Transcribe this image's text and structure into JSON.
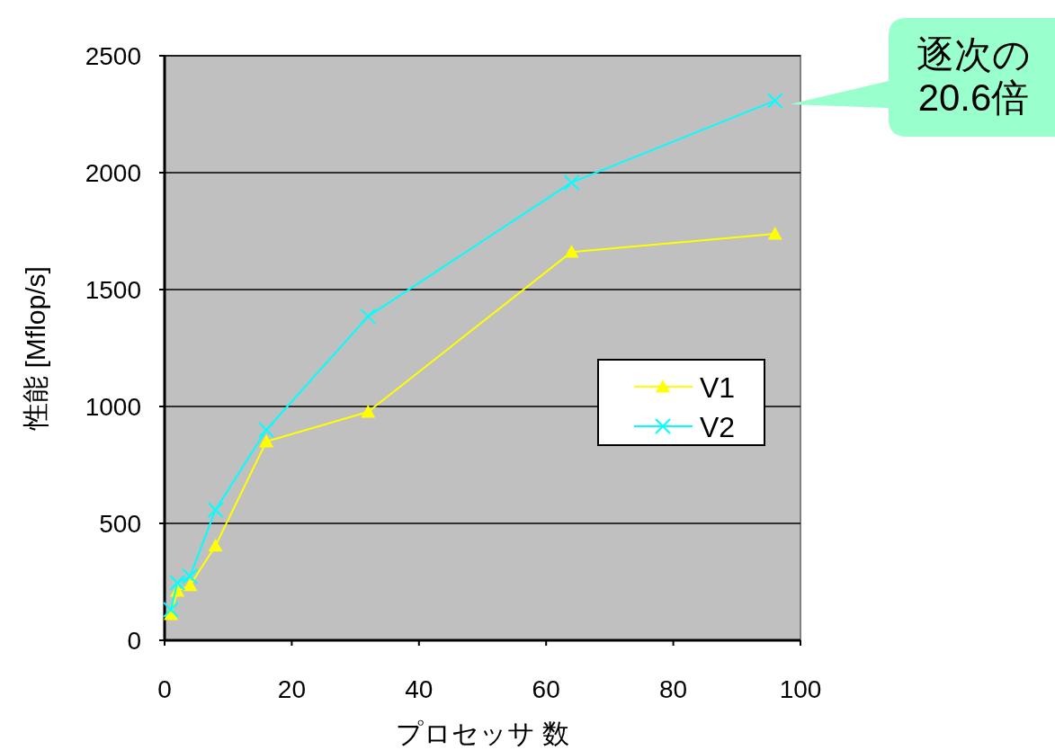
{
  "chart_data": {
    "type": "line",
    "xlabel": "プロセッサ 数",
    "ylabel": "性能 [Mflop/s]",
    "xlim": [
      0,
      100
    ],
    "xticks": [
      0,
      20,
      40,
      60,
      80,
      100
    ],
    "ylim": [
      0,
      2500
    ],
    "yticks": [
      0,
      500,
      1000,
      1500,
      2000,
      2500
    ],
    "grid": "y",
    "legend": "right",
    "series": [
      {
        "name": "V1",
        "color": "#ffff00",
        "marker": "triangle",
        "x": [
          1,
          2,
          4,
          8,
          16,
          32,
          64,
          96
        ],
        "values": [
          111,
          211,
          235,
          404,
          850,
          977,
          1661,
          1738
        ]
      },
      {
        "name": "V2",
        "color": "#00ffff",
        "marker": "cross",
        "x": [
          1,
          2,
          4,
          8,
          16,
          32,
          64,
          96
        ],
        "values": [
          131,
          246,
          273,
          558,
          900,
          1385,
          1958,
          2308
        ]
      }
    ],
    "annotations": [
      "逐次の\n20.6倍"
    ]
  }
}
